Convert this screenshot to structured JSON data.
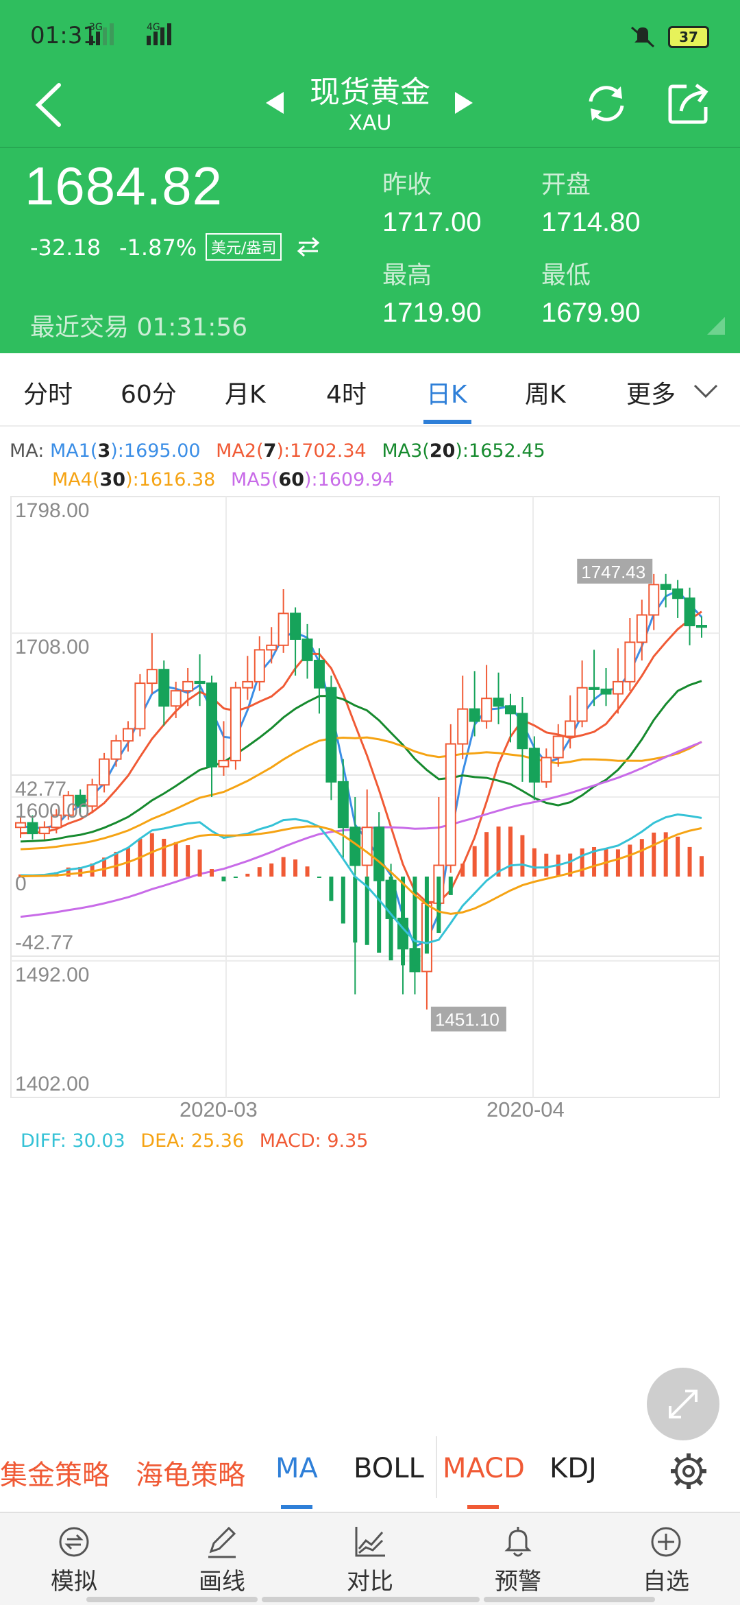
{
  "status": {
    "time": "01:31",
    "signal_3g": "3G",
    "signal_4g": "4G",
    "battery": "37"
  },
  "header": {
    "title": "现货黄金",
    "subtitle": "XAU"
  },
  "quote": {
    "price": "1684.82",
    "change": "-32.18",
    "change_pct": "-1.87%",
    "unit": "美元/盎司",
    "last_trade_label": "最近交易",
    "last_trade_time": "01:31:56",
    "prev_close_label": "昨收",
    "prev_close": "1717.00",
    "open_label": "开盘",
    "open": "1714.80",
    "high_label": "最高",
    "high": "1719.90",
    "low_label": "最低",
    "low": "1679.90"
  },
  "tabs": [
    "分时",
    "60分",
    "月K",
    "4时",
    "日K",
    "周K",
    "更多"
  ],
  "active_tab": "日K",
  "ma_legend": {
    "prefix": "MA:",
    "ma1": {
      "label": "MA1(",
      "n": "3",
      "val": "):1695.00",
      "color": "#3b8ee6"
    },
    "ma2": {
      "label": "MA2(",
      "n": "7",
      "val": "):1702.34",
      "color": "#f05a35"
    },
    "ma3": {
      "label": "MA3(",
      "n": "20",
      "val": "):1652.45",
      "color": "#168a2e"
    },
    "ma4": {
      "label": "MA4(",
      "n": "30",
      "val": "):1616.38",
      "color": "#f5a313"
    },
    "ma5": {
      "label": "MA5(",
      "n": "60",
      "val": "):1609.94",
      "color": "#c86be8"
    }
  },
  "macd_legend": {
    "diff": "DIFF:  30.03",
    "dea": "DEA:  25.36",
    "macd": "MACD:  9.35"
  },
  "chart_data": [
    {
      "type": "candlestick",
      "y_ticks": [
        "1798.00",
        "1708.00",
        "1600.00",
        "1492.00",
        "1402.00"
      ],
      "ylim": [
        1402,
        1798
      ],
      "x_ticks": [
        "2020-03",
        "2020-04"
      ],
      "max_label": "1747.43",
      "min_label": "1451.10",
      "candles": [
        [
          1580,
          1583,
          1573,
          1587
        ],
        [
          1583,
          1576,
          1572,
          1588
        ],
        [
          1576,
          1580,
          1572,
          1584
        ],
        [
          1580,
          1588,
          1576,
          1592
        ],
        [
          1588,
          1601,
          1585,
          1604
        ],
        [
          1601,
          1594,
          1589,
          1605
        ],
        [
          1594,
          1608,
          1590,
          1612
        ],
        [
          1608,
          1625,
          1603,
          1629
        ],
        [
          1625,
          1637,
          1620,
          1641
        ],
        [
          1637,
          1645,
          1630,
          1650
        ],
        [
          1645,
          1675,
          1640,
          1681
        ],
        [
          1675,
          1684,
          1668,
          1708
        ],
        [
          1684,
          1660,
          1647,
          1690
        ],
        [
          1660,
          1670,
          1652,
          1676
        ],
        [
          1670,
          1676,
          1660,
          1685
        ],
        [
          1676,
          1675,
          1660,
          1694
        ],
        [
          1675,
          1620,
          1600,
          1680
        ],
        [
          1620,
          1624,
          1614,
          1650
        ],
        [
          1624,
          1672,
          1618,
          1676
        ],
        [
          1672,
          1676,
          1664,
          1693
        ],
        [
          1676,
          1697,
          1670,
          1706
        ],
        [
          1697,
          1700,
          1688,
          1712
        ],
        [
          1700,
          1721,
          1695,
          1737
        ],
        [
          1721,
          1704,
          1680,
          1725
        ],
        [
          1704,
          1690,
          1678,
          1714
        ],
        [
          1690,
          1672,
          1655,
          1698
        ],
        [
          1672,
          1610,
          1598,
          1680
        ],
        [
          1610,
          1580,
          1560,
          1625
        ],
        [
          1580,
          1555,
          1470,
          1600
        ],
        [
          1555,
          1580,
          1540,
          1605
        ],
        [
          1580,
          1545,
          1505,
          1590
        ],
        [
          1545,
          1520,
          1500,
          1556
        ],
        [
          1520,
          1500,
          1470,
          1530
        ],
        [
          1500,
          1485,
          1470,
          1520
        ],
        [
          1485,
          1530,
          1460,
          1540
        ],
        [
          1530,
          1555,
          1525,
          1600
        ],
        [
          1555,
          1635,
          1550,
          1648
        ],
        [
          1635,
          1658,
          1625,
          1680
        ],
        [
          1658,
          1650,
          1640,
          1683
        ],
        [
          1650,
          1665,
          1645,
          1687
        ],
        [
          1665,
          1660,
          1648,
          1682
        ],
        [
          1660,
          1655,
          1636,
          1668
        ],
        [
          1655,
          1632,
          1610,
          1666
        ],
        [
          1632,
          1610,
          1598,
          1640
        ],
        [
          1610,
          1626,
          1606,
          1632
        ],
        [
          1626,
          1640,
          1620,
          1648
        ],
        [
          1640,
          1650,
          1632,
          1667
        ],
        [
          1650,
          1672,
          1646,
          1690
        ],
        [
          1672,
          1671,
          1660,
          1697
        ],
        [
          1671,
          1668,
          1660,
          1685
        ],
        [
          1668,
          1676,
          1655,
          1698
        ],
        [
          1676,
          1702,
          1670,
          1718
        ],
        [
          1702,
          1720,
          1690,
          1730
        ],
        [
          1720,
          1740,
          1710,
          1747
        ],
        [
          1740,
          1737,
          1725,
          1747
        ],
        [
          1737,
          1731,
          1718,
          1743
        ],
        [
          1731,
          1713,
          1700,
          1738
        ],
        [
          1713,
          1712,
          1705,
          1719
        ]
      ]
    },
    {
      "type": "bar",
      "name": "MACD",
      "y_ticks": [
        "42.77",
        "0",
        "-42.77"
      ],
      "ylim": [
        -42.77,
        42.77
      ]
    }
  ],
  "indicator_tabs": {
    "strategy1": "集金策略",
    "strategy2": "海龟策略",
    "ma": "MA",
    "boll": "BOLL",
    "macd": "MACD",
    "kdj": "KDJ"
  },
  "bottom_nav": [
    {
      "label": "模拟",
      "icon": "simulate-icon"
    },
    {
      "label": "画线",
      "icon": "pen-icon"
    },
    {
      "label": "对比",
      "icon": "compare-icon"
    },
    {
      "label": "预警",
      "icon": "bell-icon"
    },
    {
      "label": "自选",
      "icon": "add-circle-icon"
    }
  ],
  "colors": {
    "header_green": "#2fbe5e",
    "up_red": "#f05a35",
    "down_green": "#16a35a",
    "active_blue": "#2e7fd8",
    "diff_cyan": "#35c2d6",
    "dea_orange": "#f5a313"
  }
}
